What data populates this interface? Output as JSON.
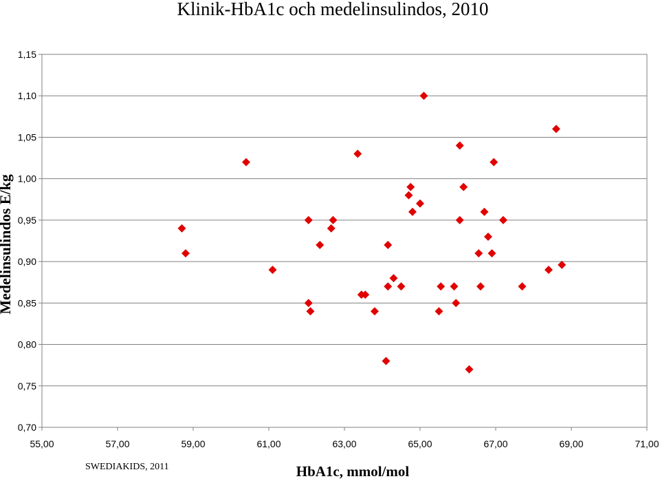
{
  "chart_data": {
    "type": "scatter",
    "title": "Klinik-HbA1c och medelinsulindos, 2010",
    "xlabel": "HbA1c, mmol/mol",
    "ylabel": "Medelinsulindos E/kg",
    "xlim": [
      55,
      71
    ],
    "ylim": [
      0.7,
      1.15
    ],
    "x_ticks": [
      "55,00",
      "57,00",
      "59,00",
      "61,00",
      "63,00",
      "65,00",
      "67,00",
      "69,00",
      "71,00"
    ],
    "y_ticks": [
      "0,70",
      "0,75",
      "0,80",
      "0,85",
      "0,90",
      "0,95",
      "1,00",
      "1,05",
      "1,10",
      "1,15"
    ],
    "x_tick_values": [
      55,
      57,
      59,
      61,
      63,
      65,
      67,
      69,
      71
    ],
    "y_tick_values": [
      0.7,
      0.75,
      0.8,
      0.85,
      0.9,
      0.95,
      1.0,
      1.05,
      1.1,
      1.15
    ],
    "grid": "horizontal",
    "marker": "diamond",
    "marker_color": "#e00000",
    "series": [
      {
        "name": "Klinik",
        "points": [
          [
            58.7,
            0.94
          ],
          [
            58.8,
            0.91
          ],
          [
            60.4,
            1.02
          ],
          [
            61.1,
            0.89
          ],
          [
            62.05,
            0.95
          ],
          [
            62.05,
            0.85
          ],
          [
            62.1,
            0.84
          ],
          [
            62.35,
            0.92
          ],
          [
            62.65,
            0.94
          ],
          [
            62.7,
            0.95
          ],
          [
            63.35,
            1.03
          ],
          [
            63.45,
            0.86
          ],
          [
            63.55,
            0.86
          ],
          [
            63.8,
            0.84
          ],
          [
            64.1,
            0.78
          ],
          [
            64.15,
            0.87
          ],
          [
            64.15,
            0.92
          ],
          [
            64.3,
            0.88
          ],
          [
            64.5,
            0.87
          ],
          [
            64.7,
            0.98
          ],
          [
            64.75,
            0.99
          ],
          [
            64.8,
            0.96
          ],
          [
            65.0,
            0.97
          ],
          [
            65.1,
            1.1
          ],
          [
            65.5,
            0.84
          ],
          [
            65.55,
            0.87
          ],
          [
            65.9,
            0.87
          ],
          [
            65.95,
            0.85
          ],
          [
            66.05,
            0.95
          ],
          [
            66.05,
            1.04
          ],
          [
            66.15,
            0.99
          ],
          [
            66.3,
            0.77
          ],
          [
            66.55,
            0.91
          ],
          [
            66.6,
            0.87
          ],
          [
            66.7,
            0.96
          ],
          [
            66.8,
            0.93
          ],
          [
            66.9,
            0.91
          ],
          [
            66.95,
            1.02
          ],
          [
            67.2,
            0.95
          ],
          [
            67.7,
            0.87
          ],
          [
            68.4,
            0.89
          ],
          [
            68.6,
            1.06
          ],
          [
            68.75,
            0.896
          ]
        ]
      }
    ]
  },
  "footer": "SWEDIAKIDS, 2011"
}
